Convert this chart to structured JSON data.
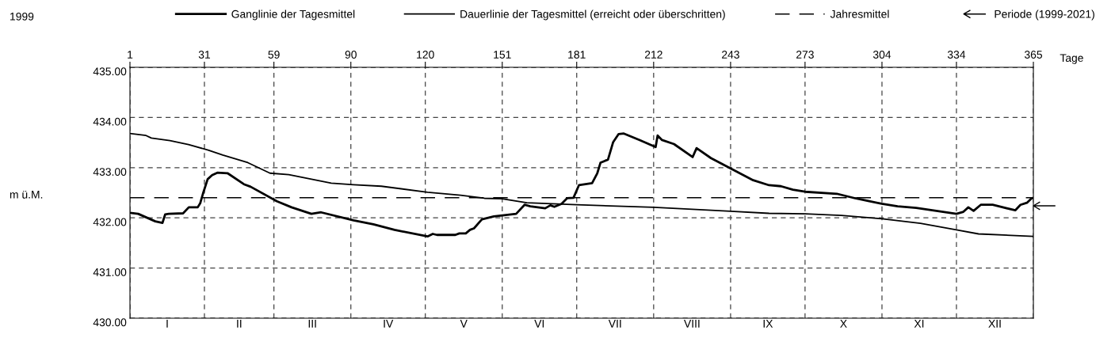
{
  "chart_data": {
    "type": "line",
    "legend_title": "1999",
    "xlabel": "Tage",
    "ylabel": "m ü.M.",
    "xlim": [
      1,
      365
    ],
    "xticks": [
      1,
      31,
      59,
      90,
      120,
      151,
      181,
      212,
      243,
      273,
      304,
      334,
      365
    ],
    "ylim": [
      430,
      435
    ],
    "yticks": [
      {
        "value": 430,
        "label": "430.00"
      },
      {
        "value": 431,
        "label": "431.00"
      },
      {
        "value": 432,
        "label": "432.00"
      },
      {
        "value": 433,
        "label": "433.00"
      },
      {
        "value": 434,
        "label": "434.00"
      },
      {
        "value": 435,
        "label": "435.00"
      }
    ],
    "grid": true,
    "legend": "top",
    "line_style": "solid",
    "series": [
      {
        "name": "Ganglinie der Tagesmittel",
        "color": "#000000",
        "x": [
          1,
          4.3,
          11.2,
          14.1,
          15.2,
          16.6,
          22.4,
          24.7,
          28.3,
          29.3,
          30.4,
          32.3,
          34.1,
          36.2,
          40.3,
          46.9,
          49.6,
          60.2,
          66.1,
          74.1,
          78,
          91.1,
          99.1,
          107.6,
          120.9,
          123,
          124.7,
          132.1,
          133.7,
          136.3,
          138,
          139.6,
          142.8,
          147.6,
          156.6,
          160,
          162.3,
          168.3,
          170.4,
          172,
          174.9,
          177.1,
          179.7,
          181.9,
          187.2,
          189.3,
          190.6,
          193.6,
          195.7,
          197.9,
          200,
          206.4,
          212.8,
          213.6,
          215.4,
          220.2,
          227.7,
          229.3,
          235.1,
          243.6,
          252.1,
          258.5,
          263.3,
          268.1,
          273,
          285.8,
          293.2,
          303.9,
          310.3,
          317.8,
          334,
          336.8,
          338.8,
          340.9,
          343.8,
          348.6,
          357.7,
          359.8,
          362.4,
          364.3,
          365
        ],
        "values": [
          432.1,
          432.08,
          431.93,
          431.9,
          432.07,
          432.08,
          432.09,
          432.21,
          432.21,
          432.29,
          432.48,
          432.77,
          432.85,
          432.9,
          432.89,
          432.67,
          432.62,
          432.33,
          432.21,
          432.08,
          432.11,
          431.95,
          431.87,
          431.76,
          431.63,
          431.68,
          431.66,
          431.66,
          431.69,
          431.69,
          431.76,
          431.79,
          431.97,
          432.03,
          432.08,
          432.26,
          432.23,
          432.19,
          432.25,
          432.22,
          432.28,
          432.39,
          432.4,
          432.65,
          432.69,
          432.89,
          433.1,
          433.16,
          433.51,
          433.67,
          433.68,
          433.55,
          433.41,
          433.64,
          433.55,
          433.47,
          433.21,
          433.39,
          433.19,
          432.97,
          432.75,
          432.65,
          432.63,
          432.56,
          432.52,
          432.48,
          432.39,
          432.28,
          432.23,
          432.2,
          432.08,
          432.12,
          432.21,
          432.14,
          432.26,
          432.26,
          432.15,
          432.26,
          432.3,
          432.39,
          432.4
        ]
      },
      {
        "name": "Dauerlinie der Tagesmittel (erreicht oder überschritten)",
        "color": "#000000",
        "x": [
          1,
          7.5,
          9.6,
          17.1,
          24.6,
          32.5,
          38.4,
          48.5,
          57.4,
          65,
          82.1,
          91.1,
          102.3,
          120.9,
          134.2,
          143.8,
          151,
          160.9,
          181,
          212,
          243,
          258.5,
          273,
          287.6,
          304,
          319.5,
          334,
          342.9,
          365
        ],
        "values": [
          433.68,
          433.64,
          433.59,
          433.54,
          433.46,
          433.35,
          433.25,
          433.1,
          432.89,
          432.86,
          432.69,
          432.66,
          432.63,
          432.51,
          432.45,
          432.39,
          432.38,
          432.3,
          432.26,
          432.21,
          432.13,
          432.09,
          432.08,
          432.05,
          431.98,
          431.89,
          431.76,
          431.68,
          431.63
        ]
      },
      {
        "name": "Periode (1999-2021)",
        "type": "scatter",
        "color": "#000000",
        "x": [
          365
        ],
        "values": [
          432.24
        ]
      }
    ],
    "ref_lines": [
      {
        "axis": "y",
        "value": 432.4,
        "label": "Jahresmittel",
        "line_style": "dashed",
        "color": "#000000"
      }
    ],
    "annotations": [
      "I",
      "II",
      "III",
      "IV",
      "V",
      "VI",
      "VII",
      "VIII",
      "IX",
      "X",
      "XI",
      "XII"
    ]
  }
}
